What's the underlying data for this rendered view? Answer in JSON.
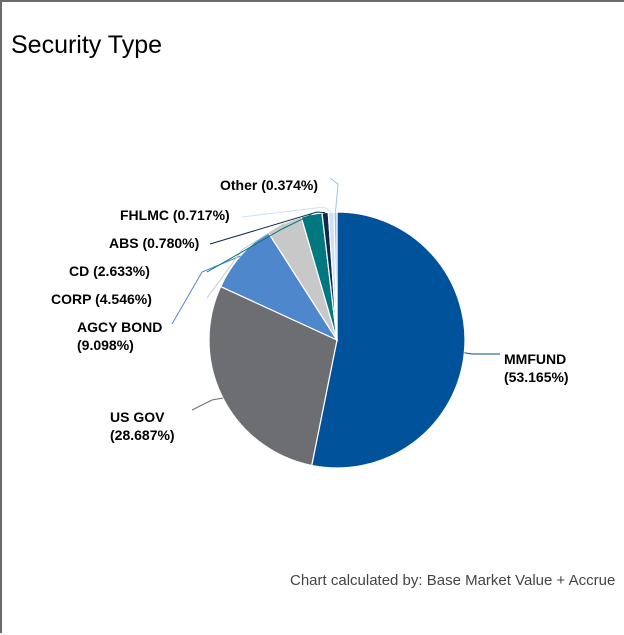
{
  "title": "Security Type",
  "footnote": "Chart calculated by: Base Market Value + Accrue",
  "chart_data": {
    "type": "pie",
    "slices": [
      {
        "name": "MMFUND",
        "label_name": "MMFUND",
        "label_pct": "(53.165%)",
        "value": 53.165,
        "color": "#00529b"
      },
      {
        "name": "US GOV",
        "label_name": "US GOV",
        "label_pct": "(28.687%)",
        "value": 28.687,
        "color": "#6d6e71"
      },
      {
        "name": "AGCY BOND",
        "label_name": "AGCY BOND",
        "label_pct": "(9.098%)",
        "value": 9.098,
        "color": "#4f87cd"
      },
      {
        "name": "CORP",
        "label_name": "CORP (4.546%)",
        "label_pct": "",
        "value": 4.546,
        "color": "#c8c8c8"
      },
      {
        "name": "CD",
        "label_name": "CD (2.633%)",
        "label_pct": "",
        "value": 2.633,
        "color": "#00787f"
      },
      {
        "name": "ABS",
        "label_name": "ABS (0.780%)",
        "label_pct": "",
        "value": 0.78,
        "color": "#0d2a4e"
      },
      {
        "name": "FHLMC",
        "label_name": "FHLMC (0.717%)",
        "label_pct": "",
        "value": 0.717,
        "color": "#cfe0f1"
      },
      {
        "name": "Other",
        "label_name": "Other (0.374%)",
        "label_pct": "",
        "value": 0.374,
        "color": "#9ec3e3"
      }
    ]
  }
}
